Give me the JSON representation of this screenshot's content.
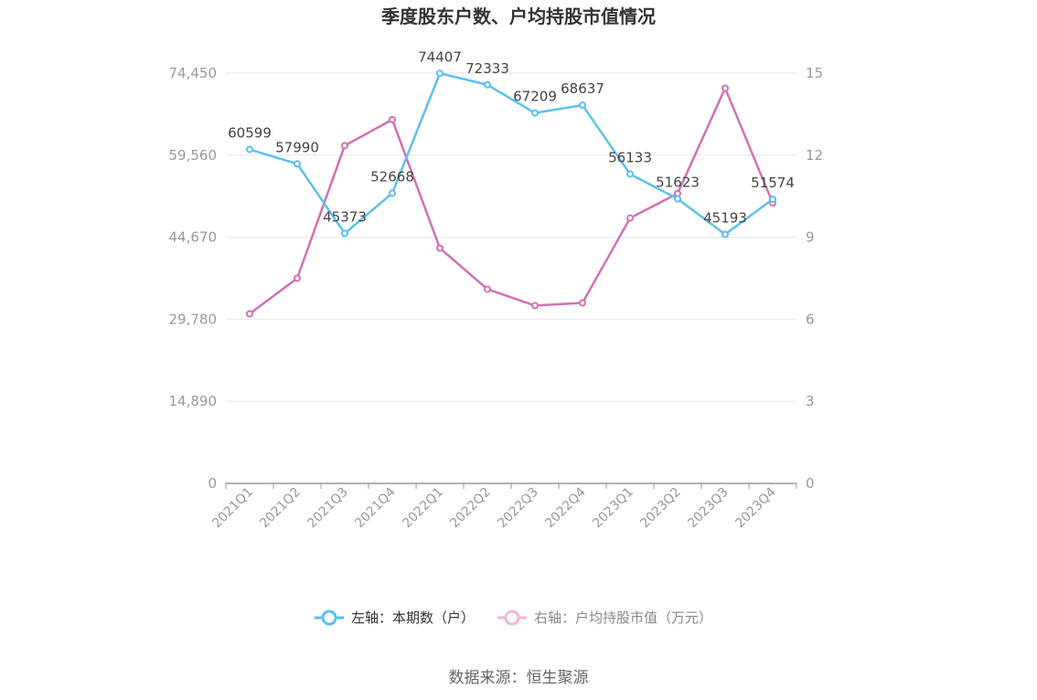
{
  "chart_data": {
    "type": "line",
    "title": "季度股东户数、户均持股市值情况",
    "categories": [
      "2021Q1",
      "2021Q2",
      "2021Q3",
      "2021Q4",
      "2022Q1",
      "2022Q2",
      "2022Q3",
      "2022Q4",
      "2023Q1",
      "2023Q2",
      "2023Q3",
      "2023Q4"
    ],
    "left_axis": {
      "ylim": [
        0,
        74450
      ],
      "ticks": [
        "0",
        "14,890",
        "29,780",
        "44,670",
        "59,560",
        "74,450"
      ],
      "tick_values": [
        0,
        14890,
        29780,
        44670,
        59560,
        74450
      ]
    },
    "right_axis": {
      "ylim": [
        0,
        15
      ],
      "ticks": [
        "0",
        "3",
        "6",
        "9",
        "12",
        "15"
      ],
      "tick_values": [
        0,
        3,
        6,
        9,
        12,
        15
      ]
    },
    "series": [
      {
        "name": "左轴：本期数（户）",
        "axis": "left",
        "color": "#5bc0f0",
        "values": [
          60599,
          57990,
          45373,
          52668,
          74407,
          72333,
          67209,
          68637,
          56133,
          51623,
          45193,
          51574
        ],
        "labels": [
          "60599",
          "57990",
          "45373",
          "52668",
          "74407",
          "72333",
          "67209",
          "68637",
          "56133",
          "51623",
          "45193",
          "51574"
        ]
      },
      {
        "name": "右轴：户均持股市值（万元）",
        "axis": "right",
        "color": "#d46fb3",
        "values": [
          6.2,
          7.5,
          12.35,
          13.3,
          8.6,
          7.1,
          6.5,
          6.6,
          9.7,
          10.6,
          14.45,
          10.25
        ]
      }
    ],
    "grid": true,
    "legend_position": "bottom"
  },
  "source": "数据来源：恒生聚源"
}
